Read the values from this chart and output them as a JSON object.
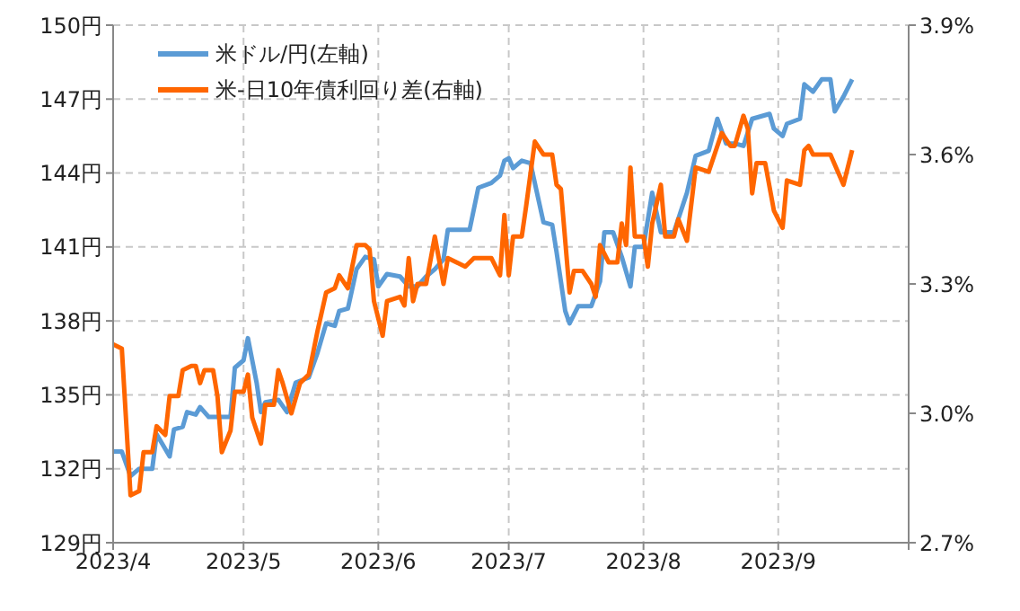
{
  "chart_data": {
    "type": "line",
    "xlim": [
      "2023-04",
      "2023-10"
    ],
    "xticks": [
      {
        "value": "2023-04",
        "label": "2023/4"
      },
      {
        "value": "2023-05",
        "label": "2023/5"
      },
      {
        "value": "2023-06",
        "label": "2023/6"
      },
      {
        "value": "2023-07",
        "label": "2023/7"
      },
      {
        "value": "2023-08",
        "label": "2023/8"
      },
      {
        "value": "2023-09",
        "label": "2023/9"
      },
      {
        "value": "2023-10",
        "label": null
      }
    ],
    "ylim": [
      129,
      150
    ],
    "yticks": [
      {
        "value": 129,
        "label": "129円"
      },
      {
        "value": 132,
        "label": "132円"
      },
      {
        "value": 135,
        "label": "135円"
      },
      {
        "value": 138,
        "label": "138円"
      },
      {
        "value": 141,
        "label": "141円"
      },
      {
        "value": 144,
        "label": "144円"
      },
      {
        "value": 147,
        "label": "147円"
      },
      {
        "value": 150,
        "label": "150円"
      }
    ],
    "y2lim": [
      2.7,
      3.9
    ],
    "y2ticks": [
      {
        "value": 2.7,
        "label": "2.7%"
      },
      {
        "value": 3.0,
        "label": "3.0%"
      },
      {
        "value": 3.3,
        "label": "3.3%"
      },
      {
        "value": 3.6,
        "label": "3.6%"
      },
      {
        "value": 3.9,
        "label": "3.9%"
      }
    ],
    "grid": true,
    "legend": "top left",
    "series": [
      {
        "name": "米ドル/円(左軸)",
        "color": "#5b9bd5",
        "x": [
          "2023-04-01",
          "2023-04-03",
          "2023-04-05",
          "2023-04-07",
          "2023-04-08",
          "2023-04-10",
          "2023-04-11",
          "2023-04-14",
          "2023-04-15",
          "2023-04-17",
          "2023-04-18",
          "2023-04-20",
          "2023-04-21",
          "2023-04-23",
          "2023-04-26",
          "2023-04-28",
          "2023-04-29",
          "2023-05-01",
          "2023-05-02",
          "2023-05-04",
          "2023-05-05",
          "2023-05-06",
          "2023-05-09",
          "2023-05-11",
          "2023-05-13",
          "2023-05-16",
          "2023-05-18",
          "2023-05-20",
          "2023-05-22",
          "2023-05-23",
          "2023-05-25",
          "2023-05-27",
          "2023-05-29",
          "2023-05-31",
          "2023-06-01",
          "2023-06-03",
          "2023-06-06",
          "2023-06-08",
          "2023-06-10",
          "2023-06-12",
          "2023-06-14",
          "2023-06-16",
          "2023-06-17",
          "2023-06-20",
          "2023-06-22",
          "2023-06-24",
          "2023-06-27",
          "2023-06-29",
          "2023-06-30",
          "2023-07-01",
          "2023-07-02",
          "2023-07-04",
          "2023-07-06",
          "2023-07-09",
          "2023-07-11",
          "2023-07-12",
          "2023-07-14",
          "2023-07-15",
          "2023-07-17",
          "2023-07-20",
          "2023-07-22",
          "2023-07-23",
          "2023-07-25",
          "2023-07-27",
          "2023-07-29",
          "2023-07-30",
          "2023-08-01",
          "2023-08-03",
          "2023-08-05",
          "2023-08-08",
          "2023-08-11",
          "2023-08-13",
          "2023-08-16",
          "2023-08-18",
          "2023-08-20",
          "2023-08-22",
          "2023-08-24",
          "2023-08-26",
          "2023-08-30",
          "2023-08-31",
          "2023-09-02",
          "2023-09-03",
          "2023-09-06",
          "2023-09-07",
          "2023-09-09",
          "2023-09-11",
          "2023-09-13",
          "2023-09-14",
          "2023-09-16",
          "2023-09-18"
        ],
        "values": [
          132.7,
          132.7,
          131.7,
          132.0,
          132.0,
          132.0,
          133.4,
          132.5,
          133.6,
          133.7,
          134.3,
          134.2,
          134.5,
          134.1,
          134.1,
          134.1,
          136.1,
          136.4,
          137.3,
          135.5,
          134.3,
          134.7,
          134.8,
          134.3,
          135.5,
          135.7,
          136.7,
          137.9,
          137.8,
          138.4,
          138.5,
          140.1,
          140.6,
          140.5,
          139.4,
          139.9,
          139.8,
          139.4,
          139.4,
          139.8,
          140.1,
          140.5,
          141.7,
          141.7,
          141.7,
          143.4,
          143.6,
          143.9,
          144.5,
          144.6,
          144.2,
          144.5,
          144.4,
          142.0,
          141.9,
          140.8,
          138.4,
          137.9,
          138.6,
          138.6,
          139.6,
          141.6,
          141.6,
          140.6,
          139.4,
          141.0,
          141.0,
          143.2,
          141.6,
          141.6,
          143.2,
          144.7,
          144.9,
          146.2,
          145.2,
          145.2,
          145.1,
          146.2,
          146.4,
          145.8,
          145.5,
          146.0,
          146.2,
          147.6,
          147.3,
          147.8,
          147.8,
          146.5,
          147.1,
          147.8
        ]
      },
      {
        "name": "米-日10年債利回り差(右軸)",
        "color": "#ff6600",
        "axis": "y2",
        "x": [
          "2023-04-01",
          "2023-04-03",
          "2023-04-05",
          "2023-04-07",
          "2023-04-08",
          "2023-04-10",
          "2023-04-11",
          "2023-04-13",
          "2023-04-14",
          "2023-04-16",
          "2023-04-17",
          "2023-04-19",
          "2023-04-20",
          "2023-04-21",
          "2023-04-22",
          "2023-04-24",
          "2023-04-25",
          "2023-04-26",
          "2023-04-28",
          "2023-04-29",
          "2023-05-01",
          "2023-05-02",
          "2023-05-03",
          "2023-05-05",
          "2023-05-06",
          "2023-05-08",
          "2023-05-09",
          "2023-05-10",
          "2023-05-12",
          "2023-05-14",
          "2023-05-16",
          "2023-05-18",
          "2023-05-20",
          "2023-05-22",
          "2023-05-23",
          "2023-05-25",
          "2023-05-26",
          "2023-05-27",
          "2023-05-29",
          "2023-05-30",
          "2023-05-31",
          "2023-06-02",
          "2023-06-03",
          "2023-06-06",
          "2023-06-07",
          "2023-06-08",
          "2023-06-09",
          "2023-06-10",
          "2023-06-12",
          "2023-06-14",
          "2023-06-16",
          "2023-06-17",
          "2023-06-19",
          "2023-06-21",
          "2023-06-23",
          "2023-06-25",
          "2023-06-27",
          "2023-06-29",
          "2023-06-30",
          "2023-07-01",
          "2023-07-02",
          "2023-07-04",
          "2023-07-05",
          "2023-07-07",
          "2023-07-09",
          "2023-07-11",
          "2023-07-12",
          "2023-07-13",
          "2023-07-15",
          "2023-07-16",
          "2023-07-18",
          "2023-07-20",
          "2023-07-21",
          "2023-07-22",
          "2023-07-24",
          "2023-07-26",
          "2023-07-27",
          "2023-07-28",
          "2023-07-29",
          "2023-07-30",
          "2023-08-01",
          "2023-08-02",
          "2023-08-03",
          "2023-08-05",
          "2023-08-06",
          "2023-08-08",
          "2023-08-09",
          "2023-08-11",
          "2023-08-13",
          "2023-08-16",
          "2023-08-19",
          "2023-08-21",
          "2023-08-22",
          "2023-08-24",
          "2023-08-25",
          "2023-08-26",
          "2023-08-27",
          "2023-08-29",
          "2023-08-31",
          "2023-09-02",
          "2023-09-03",
          "2023-09-06",
          "2023-09-07",
          "2023-09-08",
          "2023-09-09",
          "2023-09-13",
          "2023-09-16",
          "2023-09-18"
        ],
        "values": [
          3.16,
          3.15,
          2.81,
          2.82,
          2.91,
          2.91,
          2.97,
          2.95,
          3.04,
          3.04,
          3.1,
          3.11,
          3.11,
          3.07,
          3.1,
          3.1,
          3.04,
          2.91,
          2.96,
          3.05,
          3.05,
          3.09,
          2.99,
          2.93,
          3.02,
          3.02,
          3.1,
          3.07,
          3.0,
          3.07,
          3.09,
          3.19,
          3.28,
          3.29,
          3.32,
          3.29,
          3.34,
          3.39,
          3.39,
          3.38,
          3.26,
          3.18,
          3.26,
          3.27,
          3.25,
          3.36,
          3.26,
          3.3,
          3.3,
          3.41,
          3.3,
          3.36,
          3.35,
          3.34,
          3.36,
          3.36,
          3.36,
          3.32,
          3.46,
          3.32,
          3.41,
          3.41,
          3.48,
          3.63,
          3.6,
          3.6,
          3.53,
          3.52,
          3.28,
          3.33,
          3.33,
          3.3,
          3.27,
          3.39,
          3.35,
          3.35,
          3.44,
          3.39,
          3.57,
          3.41,
          3.41,
          3.34,
          3.44,
          3.53,
          3.41,
          3.41,
          3.45,
          3.4,
          3.57,
          3.56,
          3.65,
          3.62,
          3.62,
          3.69,
          3.66,
          3.51,
          3.58,
          3.58,
          3.47,
          3.43,
          3.54,
          3.53,
          3.61,
          3.62,
          3.6,
          3.6,
          3.53,
          3.61
        ]
      }
    ]
  }
}
